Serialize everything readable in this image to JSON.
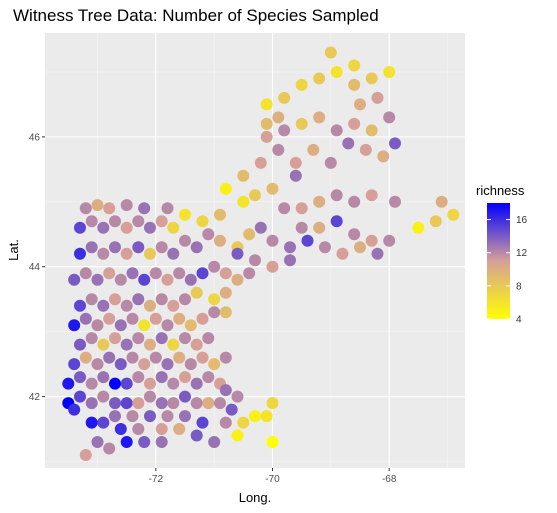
{
  "chart_data": {
    "type": "scatter",
    "title": "Witness Tree Data: Number of Species Sampled",
    "xlabel": "Long.",
    "ylabel": "Lat.",
    "xlim": [
      -73.9,
      -66.7
    ],
    "ylim": [
      40.9,
      47.6
    ],
    "x_ticks": [
      -72,
      -70,
      -68
    ],
    "x_tick_labels": [
      "-72",
      "-70",
      "-68"
    ],
    "y_ticks": [
      42,
      44,
      46
    ],
    "y_tick_labels": [
      "42",
      "44",
      "46"
    ],
    "grid": true,
    "legend": {
      "title": "richness",
      "position": "right",
      "range": [
        4,
        18
      ],
      "ticks": [
        4,
        8,
        12,
        16
      ],
      "tick_labels": [
        "4",
        "8",
        "12",
        "16"
      ],
      "color_low": "#ffff00",
      "color_mid": "#d6a098",
      "color_high": "#0000ff"
    },
    "points": [
      [
        -73.2,
        41.1,
        11
      ],
      [
        -73.0,
        41.3,
        13
      ],
      [
        -72.8,
        41.2,
        12
      ],
      [
        -72.5,
        41.3,
        17
      ],
      [
        -72.2,
        41.3,
        14
      ],
      [
        -71.9,
        41.3,
        13
      ],
      [
        -72.6,
        41.5,
        16
      ],
      [
        -72.3,
        41.5,
        12
      ],
      [
        -71.9,
        41.5,
        11
      ],
      [
        -71.6,
        41.5,
        10
      ],
      [
        -71.3,
        41.4,
        14
      ],
      [
        -71.0,
        41.3,
        13
      ],
      [
        -73.1,
        41.6,
        17
      ],
      [
        -72.9,
        41.6,
        15
      ],
      [
        -72.7,
        41.7,
        13
      ],
      [
        -72.4,
        41.7,
        12
      ],
      [
        -72.1,
        41.7,
        14
      ],
      [
        -71.8,
        41.7,
        12
      ],
      [
        -71.5,
        41.7,
        13
      ],
      [
        -71.2,
        41.6,
        15
      ],
      [
        -70.8,
        41.6,
        12
      ],
      [
        -70.6,
        41.4,
        5
      ],
      [
        -70.5,
        41.6,
        7
      ],
      [
        -70.3,
        41.7,
        5
      ],
      [
        -70.1,
        41.7,
        6
      ],
      [
        -70.0,
        41.9,
        7
      ],
      [
        -70.0,
        41.3,
        4
      ],
      [
        -73.5,
        41.9,
        18
      ],
      [
        -73.4,
        41.8,
        16
      ],
      [
        -73.3,
        42.0,
        15
      ],
      [
        -73.1,
        41.9,
        13
      ],
      [
        -72.9,
        42.0,
        12
      ],
      [
        -72.7,
        41.9,
        14
      ],
      [
        -72.5,
        41.9,
        15
      ],
      [
        -72.3,
        41.9,
        11
      ],
      [
        -72.1,
        42.0,
        12
      ],
      [
        -71.9,
        41.9,
        13
      ],
      [
        -71.7,
        41.9,
        12
      ],
      [
        -71.5,
        42.0,
        14
      ],
      [
        -71.3,
        41.9,
        12
      ],
      [
        -71.1,
        41.9,
        10
      ],
      [
        -70.9,
        41.9,
        12
      ],
      [
        -70.7,
        41.8,
        14
      ],
      [
        -73.5,
        42.2,
        17
      ],
      [
        -73.3,
        42.3,
        14
      ],
      [
        -73.1,
        42.2,
        12
      ],
      [
        -72.9,
        42.3,
        13
      ],
      [
        -72.7,
        42.2,
        18
      ],
      [
        -72.5,
        42.2,
        15
      ],
      [
        -72.3,
        42.3,
        12
      ],
      [
        -72.1,
        42.2,
        11
      ],
      [
        -71.9,
        42.3,
        13
      ],
      [
        -71.7,
        42.2,
        12
      ],
      [
        -71.5,
        42.3,
        11
      ],
      [
        -71.3,
        42.2,
        13
      ],
      [
        -71.1,
        42.3,
        12
      ],
      [
        -70.9,
        42.2,
        11
      ],
      [
        -70.8,
        42.1,
        13
      ],
      [
        -70.6,
        42.0,
        12
      ],
      [
        -73.4,
        42.5,
        15
      ],
      [
        -73.2,
        42.6,
        10
      ],
      [
        -73.0,
        42.5,
        12
      ],
      [
        -72.8,
        42.6,
        13
      ],
      [
        -72.6,
        42.5,
        14
      ],
      [
        -72.4,
        42.6,
        12
      ],
      [
        -72.2,
        42.5,
        11
      ],
      [
        -72.0,
        42.6,
        12
      ],
      [
        -71.8,
        42.5,
        13
      ],
      [
        -71.6,
        42.6,
        10
      ],
      [
        -71.4,
        42.5,
        12
      ],
      [
        -71.2,
        42.6,
        11
      ],
      [
        -71.0,
        42.5,
        9
      ],
      [
        -70.8,
        42.6,
        12
      ],
      [
        -73.3,
        42.8,
        14
      ],
      [
        -73.1,
        42.9,
        12
      ],
      [
        -72.9,
        42.8,
        8
      ],
      [
        -72.7,
        42.9,
        11
      ],
      [
        -72.5,
        42.8,
        13
      ],
      [
        -72.3,
        42.9,
        12
      ],
      [
        -72.1,
        42.8,
        10
      ],
      [
        -71.9,
        42.9,
        13
      ],
      [
        -71.7,
        42.8,
        7
      ],
      [
        -71.5,
        42.9,
        12
      ],
      [
        -71.3,
        42.8,
        11
      ],
      [
        -71.1,
        42.9,
        12
      ],
      [
        -73.4,
        43.1,
        17
      ],
      [
        -73.2,
        43.2,
        13
      ],
      [
        -73.0,
        43.1,
        12
      ],
      [
        -72.8,
        43.2,
        11
      ],
      [
        -72.6,
        43.1,
        13
      ],
      [
        -72.4,
        43.2,
        12
      ],
      [
        -72.2,
        43.1,
        6
      ],
      [
        -72.0,
        43.2,
        11
      ],
      [
        -71.8,
        43.1,
        12
      ],
      [
        -71.6,
        43.2,
        10
      ],
      [
        -71.4,
        43.1,
        9
      ],
      [
        -71.2,
        43.2,
        11
      ],
      [
        -71.0,
        43.3,
        12
      ],
      [
        -73.3,
        43.4,
        15
      ],
      [
        -73.1,
        43.5,
        12
      ],
      [
        -72.9,
        43.4,
        13
      ],
      [
        -72.7,
        43.5,
        11
      ],
      [
        -72.5,
        43.4,
        12
      ],
      [
        -72.3,
        43.5,
        13
      ],
      [
        -72.1,
        43.4,
        10
      ],
      [
        -71.9,
        43.5,
        12
      ],
      [
        -71.7,
        43.4,
        11
      ],
      [
        -71.5,
        43.5,
        12
      ],
      [
        -71.3,
        43.6,
        8
      ],
      [
        -71.0,
        43.5,
        7
      ],
      [
        -70.8,
        43.3,
        9
      ],
      [
        -70.8,
        43.6,
        10
      ],
      [
        -73.4,
        43.8,
        14
      ],
      [
        -73.2,
        43.9,
        12
      ],
      [
        -73.0,
        43.8,
        13
      ],
      [
        -72.8,
        43.9,
        11
      ],
      [
        -72.6,
        43.8,
        12
      ],
      [
        -72.4,
        43.9,
        13
      ],
      [
        -72.2,
        43.8,
        15
      ],
      [
        -72.0,
        43.9,
        12
      ],
      [
        -71.8,
        43.8,
        11
      ],
      [
        -71.6,
        43.9,
        12
      ],
      [
        -71.4,
        43.8,
        13
      ],
      [
        -71.2,
        43.9,
        15
      ],
      [
        -71.0,
        44.0,
        12
      ],
      [
        -70.8,
        43.9,
        11
      ],
      [
        -70.6,
        43.8,
        10
      ],
      [
        -70.4,
        43.9,
        12
      ],
      [
        -73.3,
        44.2,
        16
      ],
      [
        -73.1,
        44.3,
        13
      ],
      [
        -72.9,
        44.2,
        12
      ],
      [
        -72.7,
        44.3,
        13
      ],
      [
        -72.5,
        44.2,
        11
      ],
      [
        -72.3,
        44.3,
        14
      ],
      [
        -72.1,
        44.2,
        8
      ],
      [
        -71.9,
        44.3,
        12
      ],
      [
        -71.7,
        44.2,
        13
      ],
      [
        -71.5,
        44.4,
        12
      ],
      [
        -71.3,
        44.3,
        13
      ],
      [
        -71.1,
        44.5,
        12
      ],
      [
        -70.9,
        44.4,
        10
      ],
      [
        -70.6,
        44.3,
        8
      ],
      [
        -70.4,
        44.5,
        9
      ],
      [
        -73.3,
        44.6,
        15
      ],
      [
        -73.1,
        44.7,
        12
      ],
      [
        -72.9,
        44.6,
        13
      ],
      [
        -72.7,
        44.7,
        12
      ],
      [
        -72.5,
        44.6,
        11
      ],
      [
        -72.3,
        44.7,
        12
      ],
      [
        -72.1,
        44.6,
        13
      ],
      [
        -71.9,
        44.7,
        11
      ],
      [
        -71.7,
        44.6,
        7
      ],
      [
        -71.5,
        44.8,
        6
      ],
      [
        -71.2,
        44.7,
        7
      ],
      [
        -70.9,
        44.8,
        9
      ],
      [
        -73.2,
        44.9,
        12
      ],
      [
        -73.0,
        44.95,
        10
      ],
      [
        -72.8,
        44.9,
        11
      ],
      [
        -72.5,
        44.95,
        12
      ],
      [
        -72.2,
        44.9,
        13
      ],
      [
        -71.8,
        44.9,
        12
      ],
      [
        -70.8,
        45.2,
        5
      ],
      [
        -70.5,
        45.0,
        6
      ],
      [
        -70.3,
        45.1,
        8
      ],
      [
        -70.0,
        45.2,
        9
      ],
      [
        -69.8,
        44.9,
        12
      ],
      [
        -70.2,
        44.6,
        13
      ],
      [
        -70.0,
        44.4,
        12
      ],
      [
        -69.7,
        44.3,
        13
      ],
      [
        -69.4,
        44.4,
        15
      ],
      [
        -69.1,
        44.3,
        12
      ],
      [
        -68.8,
        44.2,
        11
      ],
      [
        -68.5,
        44.3,
        10
      ],
      [
        -68.2,
        44.2,
        13
      ],
      [
        -70.6,
        44.2,
        14
      ],
      [
        -70.3,
        44.1,
        12
      ],
      [
        -70.0,
        44.0,
        11
      ],
      [
        -69.7,
        44.1,
        13
      ],
      [
        -69.5,
        44.6,
        12
      ],
      [
        -69.2,
        44.6,
        10
      ],
      [
        -68.9,
        44.7,
        15
      ],
      [
        -68.6,
        44.5,
        12
      ],
      [
        -68.3,
        44.4,
        11
      ],
      [
        -68.0,
        44.4,
        12
      ],
      [
        -67.5,
        44.6,
        5
      ],
      [
        -67.2,
        44.7,
        8
      ],
      [
        -66.9,
        44.8,
        7
      ],
      [
        -69.5,
        44.9,
        11
      ],
      [
        -69.2,
        45.0,
        10
      ],
      [
        -68.9,
        45.1,
        12
      ],
      [
        -68.6,
        45.0,
        12
      ],
      [
        -68.3,
        45.1,
        11
      ],
      [
        -67.9,
        45.0,
        12
      ],
      [
        -67.1,
        45.0,
        10
      ],
      [
        -70.5,
        45.4,
        9
      ],
      [
        -70.2,
        45.6,
        11
      ],
      [
        -69.9,
        45.8,
        12
      ],
      [
        -69.6,
        45.6,
        11
      ],
      [
        -69.3,
        45.8,
        10
      ],
      [
        -69.0,
        45.6,
        12
      ],
      [
        -68.7,
        45.9,
        13
      ],
      [
        -68.4,
        45.8,
        11
      ],
      [
        -68.1,
        45.7,
        10
      ],
      [
        -67.9,
        45.9,
        14
      ],
      [
        -70.1,
        46.0,
        11
      ],
      [
        -69.8,
        46.1,
        12
      ],
      [
        -69.5,
        46.2,
        8
      ],
      [
        -69.2,
        46.3,
        10
      ],
      [
        -68.9,
        46.1,
        12
      ],
      [
        -68.6,
        46.2,
        11
      ],
      [
        -68.3,
        46.1,
        9
      ],
      [
        -68.0,
        46.3,
        12
      ],
      [
        -70.1,
        46.5,
        6
      ],
      [
        -69.8,
        46.6,
        8
      ],
      [
        -69.5,
        46.8,
        7
      ],
      [
        -69.2,
        46.9,
        8
      ],
      [
        -68.9,
        47.0,
        6
      ],
      [
        -68.6,
        46.8,
        9
      ],
      [
        -68.3,
        46.9,
        8
      ],
      [
        -68.0,
        47.0,
        6
      ],
      [
        -69.0,
        47.3,
        8
      ],
      [
        -68.6,
        47.1,
        7
      ],
      [
        -68.2,
        46.6,
        11
      ],
      [
        -68.5,
        46.5,
        10
      ],
      [
        -69.9,
        46.3,
        10
      ],
      [
        -70.1,
        46.2,
        9
      ],
      [
        -69.6,
        45.4,
        13
      ]
    ]
  }
}
